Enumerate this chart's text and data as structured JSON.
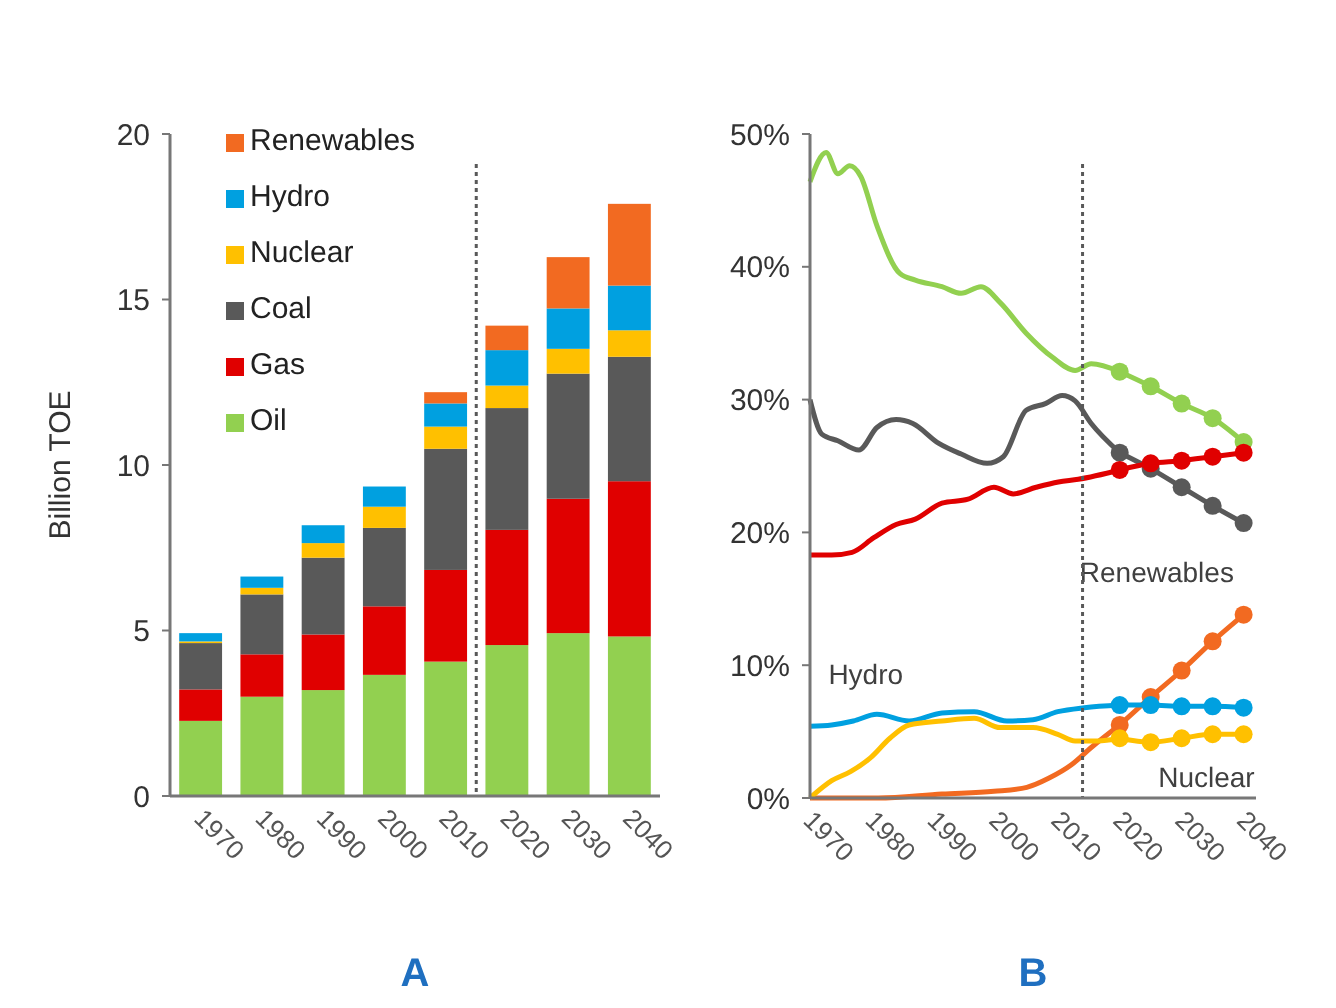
{
  "chart_data": [
    {
      "type": "bar",
      "stacked": true,
      "title": "A",
      "ylabel": "Billion TOE",
      "x": [
        1970,
        1980,
        1990,
        2000,
        2010,
        2020,
        2030,
        2040
      ],
      "xlim": [
        1965,
        2045
      ],
      "xticks": [
        1970,
        1980,
        1990,
        2000,
        2010,
        2020,
        2030,
        2040
      ],
      "ylim": [
        0,
        20
      ],
      "yticks": [
        0,
        5,
        10,
        15,
        20
      ],
      "legend": "top left",
      "ref_lines": [
        {
          "axis": "x",
          "value": 2015,
          "color": "#595959",
          "line_style": "dotted"
        }
      ],
      "series": [
        {
          "name": "Oil",
          "color": "#92d050",
          "values": [
            2.27,
            3.0,
            3.2,
            3.66,
            4.06,
            4.56,
            4.92,
            4.82
          ]
        },
        {
          "name": "Gas",
          "color": "#e00000",
          "values": [
            0.95,
            1.28,
            1.68,
            2.07,
            2.77,
            3.48,
            4.06,
            4.69
          ]
        },
        {
          "name": "Coal",
          "color": "#595959",
          "values": [
            1.4,
            1.81,
            2.32,
            2.37,
            3.66,
            3.68,
            3.78,
            3.76
          ]
        },
        {
          "name": "Nuclear",
          "color": "#ffc000",
          "values": [
            0.05,
            0.2,
            0.44,
            0.64,
            0.67,
            0.68,
            0.75,
            0.8
          ]
        },
        {
          "name": "Hydro",
          "color": "#00a0e0",
          "values": [
            0.25,
            0.34,
            0.54,
            0.61,
            0.7,
            1.07,
            1.22,
            1.35
          ]
        },
        {
          "name": "Renewables",
          "color": "#f26a21",
          "values": [
            0,
            0,
            0,
            0,
            0.34,
            0.74,
            1.55,
            2.47
          ]
        }
      ]
    },
    {
      "type": "line",
      "title": "B",
      "xlim": [
        1970,
        2042
      ],
      "xticks": [
        1970,
        1980,
        1990,
        2000,
        2010,
        2020,
        2030,
        2040
      ],
      "ylim": [
        0,
        50
      ],
      "yticks": [
        {
          "value": 0,
          "label": "0%"
        },
        {
          "value": 10,
          "label": "10%"
        },
        {
          "value": 20,
          "label": "20%"
        },
        {
          "value": 30,
          "label": "30%"
        },
        {
          "value": 40,
          "label": "40%"
        },
        {
          "value": 50,
          "label": "50%"
        }
      ],
      "legend": false,
      "ref_lines": [
        {
          "axis": "x",
          "value": 2014,
          "color": "#595959",
          "line_style": "dotted"
        }
      ],
      "series": [
        {
          "color": "#92d050",
          "marker": "none",
          "x": [
            1970,
            1972.6,
            1974.5,
            1976.4,
            1978.2,
            1980.8,
            1984.5,
            1987,
            1991.3,
            1994.4,
            1997.6,
            2000.7,
            2004.9,
            2009.1,
            2012.8,
            2015.4,
            2020
          ],
          "values": [
            46.4,
            48.6,
            47,
            47.6,
            46.8,
            43.1,
            39.5,
            39,
            38.5,
            38,
            38.5,
            37.3,
            35,
            33.2,
            32.2,
            32.7,
            32.1
          ]
        },
        {
          "color": "#92d050",
          "marker": "circle",
          "x": [
            2020,
            2025,
            2030,
            2035,
            2040
          ],
          "values": [
            32.1,
            31,
            29.7,
            28.6,
            26.8
          ]
        },
        {
          "color": "#595959",
          "marker": "none",
          "x": [
            1970,
            1971.9,
            1974.5,
            1977.9,
            1980.8,
            1983.9,
            1986.6,
            1990.8,
            1994.4,
            1998.6,
            2001.2,
            2004.9,
            2008,
            2010.7,
            2012.8,
            2015.4,
            2020
          ],
          "values": [
            30,
            27.4,
            26.9,
            26.2,
            27.9,
            28.5,
            28.2,
            26.7,
            25.9,
            25.2,
            25.7,
            29.2,
            29.7,
            30.3,
            29.9,
            28.2,
            26
          ]
        },
        {
          "color": "#595959",
          "marker": "circle",
          "x": [
            2020,
            2025,
            2030,
            2035,
            2040
          ],
          "values": [
            26,
            24.8,
            23.4,
            22,
            20.7
          ]
        },
        {
          "color": "#e00000",
          "marker": "none",
          "x": [
            1970,
            1973.5,
            1976.8,
            1980.3,
            1983.9,
            1987,
            1991.3,
            1995.5,
            1999.7,
            2002.8,
            2006.5,
            2010.1,
            2013.3,
            2020
          ],
          "values": [
            18.3,
            18.3,
            18.5,
            19.6,
            20.6,
            21,
            22.2,
            22.5,
            23.4,
            22.9,
            23.4,
            23.8,
            24,
            24.7
          ]
        },
        {
          "color": "#e00000",
          "marker": "circle",
          "x": [
            2020,
            2025,
            2030,
            2035,
            2040
          ],
          "values": [
            24.7,
            25.2,
            25.4,
            25.7,
            26
          ]
        },
        {
          "color": "#f26a21",
          "marker": "none",
          "x": [
            1970,
            1981,
            1991.3,
            1999.7,
            2005,
            2008.6,
            2012.2,
            2015.4,
            2020
          ],
          "values": [
            0,
            0,
            0.3,
            0.5,
            0.8,
            1.5,
            2.5,
            3.8,
            5.5
          ]
        },
        {
          "name": "Renewables",
          "color": "#f26a21",
          "marker": "circle",
          "x": [
            2020,
            2025,
            2030,
            2035,
            2040
          ],
          "values": [
            5.5,
            7.6,
            9.6,
            11.8,
            13.8
          ]
        },
        {
          "name": "Hydro",
          "color": "#00a0e0",
          "marker": "none",
          "x": [
            1970,
            1973.5,
            1977,
            1980.8,
            1986,
            1991.3,
            1996.5,
            2001.8,
            2006,
            2010,
            2014.3,
            2020
          ],
          "values": [
            5.4,
            5.5,
            5.8,
            6.3,
            5.8,
            6.4,
            6.5,
            5.8,
            5.9,
            6.5,
            6.8,
            7
          ]
        },
        {
          "color": "#00a0e0",
          "marker": "circle",
          "x": [
            2020,
            2025,
            2030,
            2035,
            2040
          ],
          "values": [
            7,
            7,
            6.9,
            6.9,
            6.8
          ]
        },
        {
          "color": "#ffc000",
          "marker": "none",
          "x": [
            1970,
            1973.5,
            1976.6,
            1979.7,
            1982.9,
            1986,
            1991.3,
            1996.5,
            2000.7,
            2006,
            2010,
            2012.8,
            2016.4,
            2020
          ],
          "values": [
            0,
            1.3,
            2,
            3,
            4.5,
            5.5,
            5.8,
            6,
            5.3,
            5.3,
            4.8,
            4.3,
            4.3,
            4.5
          ]
        },
        {
          "name": "Nuclear",
          "color": "#ffc000",
          "marker": "circle",
          "x": [
            2020,
            2025,
            2030,
            2035,
            2040
          ],
          "values": [
            4.5,
            4.2,
            4.5,
            4.8,
            4.8
          ]
        }
      ]
    }
  ]
}
